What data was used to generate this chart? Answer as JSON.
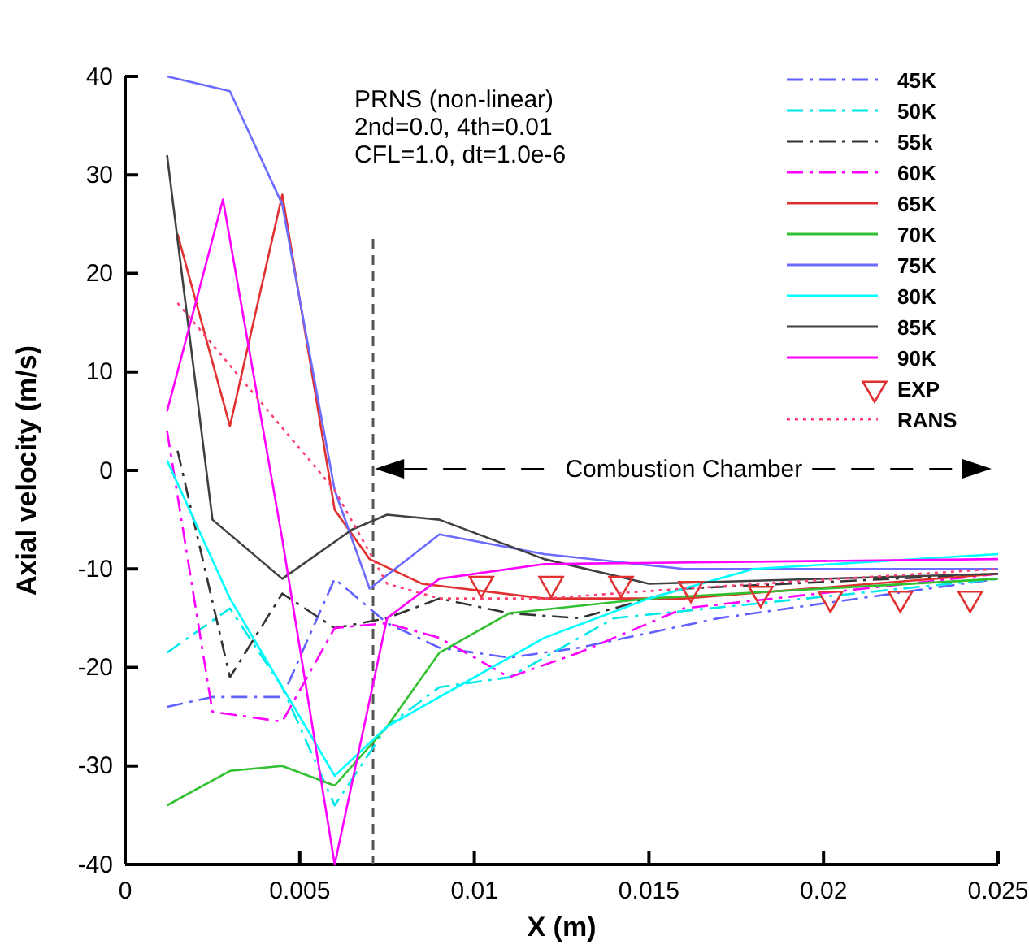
{
  "chart_data": {
    "type": "line",
    "xlabel": "X (m)",
    "ylabel": "Axial velocity (m/s)",
    "xlim": [
      0,
      0.025
    ],
    "xticks": [
      0,
      0.005,
      0.01,
      0.015,
      0.02,
      0.025
    ],
    "ylim": [
      -40,
      40
    ],
    "yticks": [
      -40,
      -30,
      -20,
      -10,
      0,
      10,
      20,
      30,
      40
    ],
    "grid": false,
    "legend": "top right",
    "marker": "none",
    "annotations": [
      "PRNS (non-linear)",
      "2nd=0.0, 4th=0.01",
      "CFL=1.0, dt=1.0e-6",
      "Combustion Chamber"
    ],
    "ref_lines": [
      {
        "axis": "x",
        "value": 0.0071,
        "color": "#555555",
        "line_style": "dashed"
      }
    ],
    "series": [
      {
        "name": "45K",
        "color": "#6060ff",
        "line_style": "dashdot",
        "x": [
          0.0012,
          0.0025,
          0.0045,
          0.006,
          0.0075,
          0.009,
          0.011,
          0.013,
          0.017,
          0.025
        ],
        "values": [
          -24,
          -23,
          -23,
          -11,
          -15.5,
          -18,
          -19,
          -18,
          -15,
          -11
        ]
      },
      {
        "name": "50K",
        "color": "#00e8e8",
        "line_style": "dashdot",
        "x": [
          0.0012,
          0.003,
          0.0045,
          0.006,
          0.0075,
          0.009,
          0.011,
          0.014,
          0.025
        ],
        "values": [
          -18.5,
          -14,
          -22,
          -34,
          -26,
          -22,
          -21,
          -15,
          -11
        ]
      },
      {
        "name": "55k",
        "color": "#333333",
        "line_style": "dashdot",
        "x": [
          0.0015,
          0.003,
          0.0045,
          0.006,
          0.0075,
          0.009,
          0.011,
          0.013,
          0.016,
          0.025
        ],
        "values": [
          2,
          -21,
          -12.5,
          -16,
          -15,
          -13,
          -14.5,
          -15,
          -12,
          -10.5
        ]
      },
      {
        "name": "60K",
        "color": "#ff00ff",
        "line_style": "dashdot",
        "x": [
          0.0012,
          0.0025,
          0.0045,
          0.006,
          0.0075,
          0.009,
          0.011,
          0.013,
          0.016,
          0.025
        ],
        "values": [
          4,
          -24.5,
          -25.5,
          -16,
          -15.5,
          -17,
          -21,
          -18.5,
          -14,
          -10.5
        ]
      },
      {
        "name": "65K",
        "color": "#e03030",
        "line_style": "solid",
        "x": [
          0.0015,
          0.003,
          0.0045,
          0.006,
          0.007,
          0.0085,
          0.012,
          0.016,
          0.025
        ],
        "values": [
          24,
          4.5,
          28,
          -4,
          -9,
          -11.5,
          -13,
          -13,
          -10.5
        ]
      },
      {
        "name": "70K",
        "color": "#30c030",
        "line_style": "solid",
        "x": [
          0.0012,
          0.003,
          0.0045,
          0.006,
          0.0075,
          0.009,
          0.011,
          0.015,
          0.025
        ],
        "values": [
          -34,
          -30.5,
          -30,
          -32,
          -26,
          -18.5,
          -14.5,
          -13,
          -11
        ]
      },
      {
        "name": "75K",
        "color": "#6b6bff",
        "line_style": "solid",
        "x": [
          0.0012,
          0.003,
          0.0045,
          0.006,
          0.007,
          0.009,
          0.012,
          0.016,
          0.025
        ],
        "values": [
          40,
          38.5,
          27,
          -2,
          -12,
          -6.5,
          -8.5,
          -10,
          -10
        ]
      },
      {
        "name": "80K",
        "color": "#00ffff",
        "line_style": "solid",
        "x": [
          0.0012,
          0.003,
          0.0045,
          0.006,
          0.0075,
          0.0095,
          0.012,
          0.015,
          0.018,
          0.025
        ],
        "values": [
          1,
          -13,
          -22,
          -31,
          -26,
          -22,
          -17,
          -13,
          -10,
          -8.5
        ]
      },
      {
        "name": "85K",
        "color": "#404040",
        "line_style": "solid",
        "x": [
          0.0012,
          0.0025,
          0.0045,
          0.0065,
          0.0075,
          0.009,
          0.012,
          0.015,
          0.025
        ],
        "values": [
          32,
          -5,
          -11,
          -6,
          -4.5,
          -5,
          -9,
          -11.5,
          -10.5
        ]
      },
      {
        "name": "90K",
        "color": "#ff00ff",
        "line_style": "solid",
        "x": [
          0.0012,
          0.0028,
          0.0045,
          0.006,
          0.0075,
          0.009,
          0.012,
          0.025
        ],
        "values": [
          6,
          27.5,
          -7,
          -40,
          -15,
          -11,
          -9.5,
          -9
        ]
      },
      {
        "name": "EXP",
        "type": "scatter",
        "marker": "triangle",
        "color": "#e03030",
        "x": [
          0.0102,
          0.0122,
          0.0142,
          0.0162,
          0.0182,
          0.0202,
          0.0222,
          0.0242
        ],
        "values": [
          -11.5,
          -11.5,
          -11.5,
          -12,
          -12.5,
          -13,
          -13,
          -13
        ]
      },
      {
        "name": "RANS",
        "color": "#ff4070",
        "line_style": "dotted",
        "x": [
          0.0015,
          0.006,
          0.0075,
          0.009,
          0.012,
          0.016,
          0.025
        ],
        "values": [
          17,
          -2,
          -11.5,
          -13,
          -13,
          -12,
          -10
        ]
      }
    ]
  }
}
